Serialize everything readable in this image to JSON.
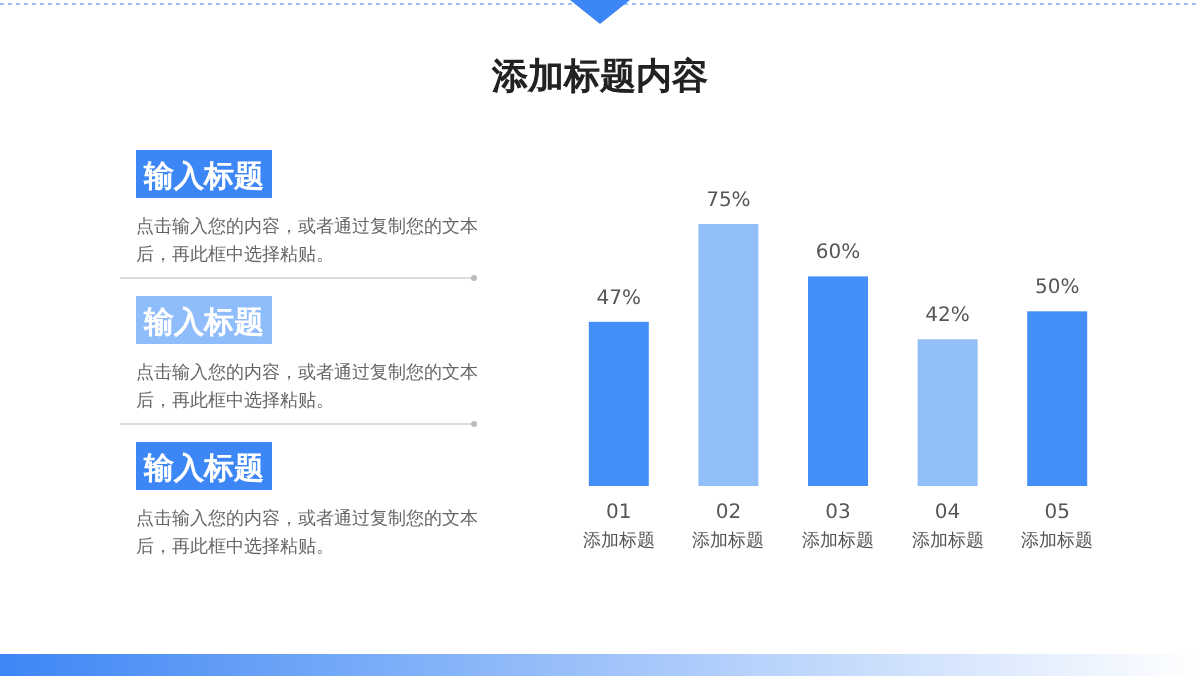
{
  "chart_data": [
    {
      "type": "other",
      "annotations": [
        "输入标题",
        "点击输入您的内容，或者通过复制您的文本后，再此框中选择粘贴。",
        "输入标题",
        "点击输入您的内容，或者通过复制您的文本后，再此框中选择粘贴。",
        "输入标题",
        "点击输入您的内容，或者通过复制您的文本后，再此框中选择粘贴。"
      ],
      "colors": [
        "#3d86f5",
        "#8fbcfa",
        "#3d86f5"
      ]
    },
    {
      "type": "bar",
      "title": "添加标题内容",
      "categories": [
        "01\n添加标题",
        "02\n添加标题",
        "03\n添加标题",
        "04\n添加标题",
        "05\n添加标题"
      ],
      "values": [
        47,
        75,
        60,
        42,
        50
      ],
      "value_labels": [
        "47%",
        "75%",
        "60%",
        "42%",
        "50%"
      ],
      "colors": [
        "#448ef7",
        "#93bff9",
        "#448ef7",
        "#93bff9",
        "#448ef7"
      ]
    }
  ]
}
